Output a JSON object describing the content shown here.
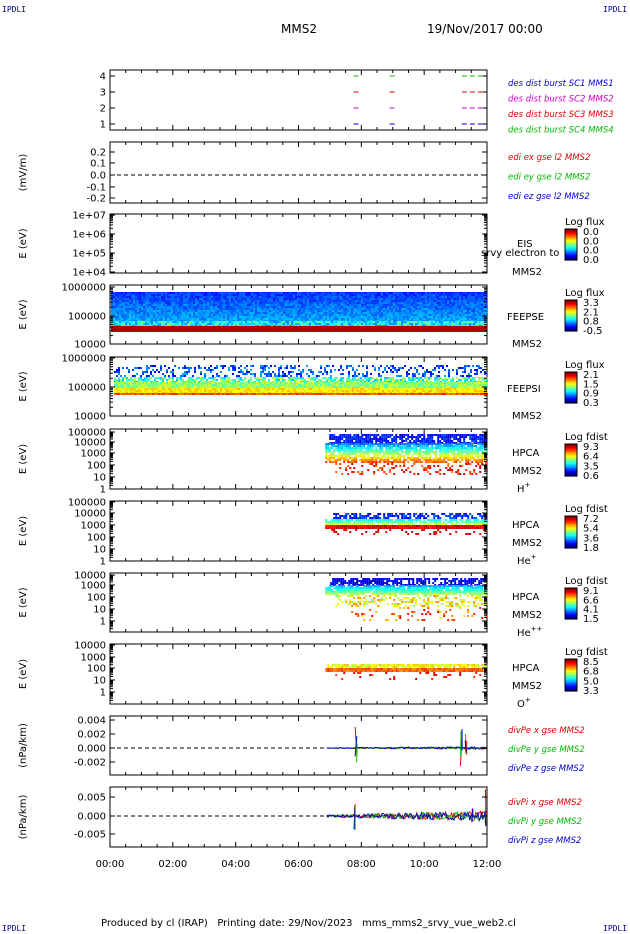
{
  "corner": {
    "tl": "IPDLI",
    "tr": "IPDLI",
    "bl": "IPDLI",
    "br": "IPDLI"
  },
  "header": {
    "mission": "MMS2",
    "date": "19/Nov/2017 00:00"
  },
  "footer": {
    "text": "Produced by cl (IRAP)   Printing date: 29/Nov/2023   mms_mms2_srvy_vue_web2.cl"
  },
  "colors": {
    "red": "#dd0000",
    "green": "#00bb00",
    "blue": "#0000cc",
    "magenta": "#cc00cc",
    "navy": "#000080"
  },
  "chart_data": {
    "type": "line",
    "time_axis": {
      "ticks": [
        "00:00",
        "02:00",
        "04:00",
        "06:00",
        "08:00",
        "10:00",
        "12:00"
      ],
      "range_hours": [
        0,
        12
      ]
    },
    "panels": [
      {
        "id": "burst",
        "type": "line",
        "ylim": [
          0.5,
          4.5
        ],
        "yticks": [
          "4",
          "3",
          "2",
          "1"
        ],
        "legend": [
          "des dist burst SC1 MMS1",
          "des dist burst SC2 MMS2",
          "des dist burst SC3 MMS3",
          "des dist burst SC4 MMS4"
        ],
        "intervals_hours": [
          [
            7.75,
            8.0
          ],
          [
            8.9,
            9.1
          ],
          [
            11.2,
            11.9
          ]
        ]
      },
      {
        "id": "edi",
        "type": "line",
        "ylabel": "(mV/m)",
        "ylim": [
          -0.25,
          0.25
        ],
        "yticks": [
          "0.2",
          "0.1",
          "0.0",
          "-0.1",
          "-0.2"
        ],
        "legend": [
          "edi ex gse l2 MMS2",
          "edi ey gse l2 MMS2",
          "edi ez gse l2 MMS2"
        ]
      },
      {
        "id": "eis",
        "type": "heatmap",
        "ylabel": "E (eV)",
        "yticks": [
          "1e+07",
          "1e+06",
          "1e+05",
          "1e+04"
        ],
        "right": [
          "EIS",
          "MMS2"
        ],
        "overlay": "srvy electron to",
        "cbar_title": "Log flux",
        "cbar_ticks": [
          "0.0",
          "0.0",
          "0.0",
          "0.0"
        ]
      },
      {
        "id": "feepse",
        "type": "heatmap",
        "ylabel": "E (eV)",
        "yticks": [
          "1000000",
          "100000",
          "10000"
        ],
        "right": [
          "FEEPSE",
          "MMS2"
        ],
        "cbar_title": "Log flux",
        "cbar_ticks": [
          "3.3",
          "2.1",
          "0.8",
          "-0.5"
        ]
      },
      {
        "id": "feepsi",
        "type": "heatmap",
        "ylabel": "E (eV)",
        "yticks": [
          "1000000",
          "100000",
          "10000"
        ],
        "right": [
          "FEEPSI",
          "MMS2"
        ],
        "cbar_title": "Log flux",
        "cbar_ticks": [
          "2.1",
          "1.5",
          "0.9",
          "0.3"
        ]
      },
      {
        "id": "hpca_h",
        "type": "heatmap",
        "ylabel": "E (eV)",
        "yticks": [
          "100000",
          "10000",
          "1000",
          "100",
          "10",
          "1"
        ],
        "right": [
          "HPCA",
          "MMS2"
        ],
        "species": "H",
        "species_sup": "+",
        "cbar_title": "Log fdist",
        "cbar_ticks": [
          "9.3",
          "6.4",
          "3.5",
          "0.6"
        ]
      },
      {
        "id": "hpca_he",
        "type": "heatmap",
        "ylabel": "E (eV)",
        "yticks": [
          "100000",
          "10000",
          "1000",
          "100",
          "10",
          "1"
        ],
        "right": [
          "HPCA",
          "MMS2"
        ],
        "species": "He",
        "species_sup": "+",
        "cbar_title": "Log fdist",
        "cbar_ticks": [
          "7.2",
          "5.4",
          "3.6",
          "1.8"
        ]
      },
      {
        "id": "hpca_hepp",
        "type": "heatmap",
        "ylabel": "E (eV)",
        "yticks": [
          "10000",
          "1000",
          "100",
          "10",
          "1"
        ],
        "right": [
          "HPCA",
          "MMS2"
        ],
        "species": "He",
        "species_sup": "++",
        "cbar_title": "Log fdist",
        "cbar_ticks": [
          "9.1",
          "6.6",
          "4.1",
          "1.5"
        ]
      },
      {
        "id": "hpca_o",
        "type": "heatmap",
        "ylabel": "E (eV)",
        "yticks": [
          "10000",
          "1000",
          "100",
          "10",
          "1"
        ],
        "right": [
          "HPCA",
          "MMS2"
        ],
        "species": "O",
        "species_sup": "+",
        "cbar_title": "Log fdist",
        "cbar_ticks": [
          "8.5",
          "6.8",
          "5.0",
          "3.3"
        ]
      },
      {
        "id": "divpe",
        "type": "line",
        "ylabel": "(nPa/km)",
        "ylim": [
          -0.0045,
          0.0045
        ],
        "yticks": [
          "0.004",
          "0.002",
          "0.000",
          "-0.002"
        ],
        "legend": [
          "divPe x gse MMS2",
          "divPe y gse MMS2",
          "divPe z gse MMS2"
        ]
      },
      {
        "id": "divpi",
        "type": "line",
        "ylabel": "(nPa/km)",
        "ylim": [
          -0.008,
          0.008
        ],
        "yticks": [
          "0.005",
          "0.000",
          "-0.005"
        ],
        "legend": [
          "divPi x gse MMS2",
          "divPi y gse MMS2",
          "divPi z gse MMS2"
        ]
      }
    ]
  }
}
